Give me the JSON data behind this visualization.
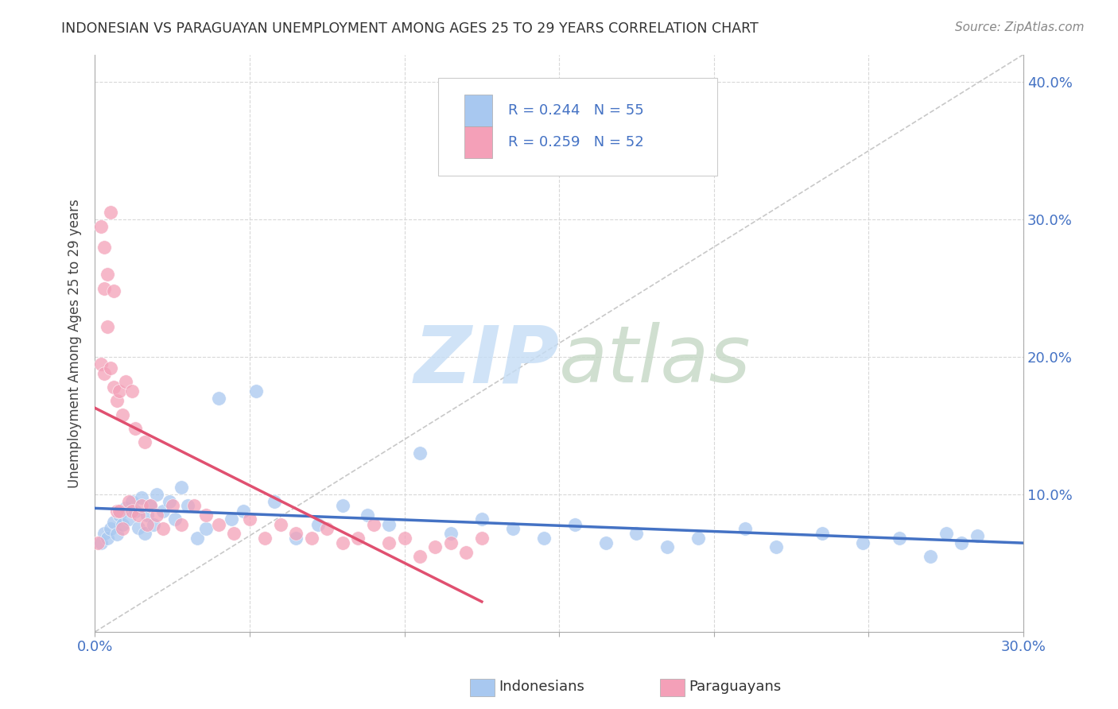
{
  "title": "INDONESIAN VS PARAGUAYAN UNEMPLOYMENT AMONG AGES 25 TO 29 YEARS CORRELATION CHART",
  "source": "Source: ZipAtlas.com",
  "ylabel": "Unemployment Among Ages 25 to 29 years",
  "xlim": [
    0.0,
    0.3
  ],
  "ylim": [
    0.0,
    0.42
  ],
  "indonesian_color": "#a8c8f0",
  "paraguayan_color": "#f4a0b8",
  "trend_line_color_indo": "#4472c4",
  "trend_line_color_para": "#e05070",
  "diagonal_color": "#c8c8c8",
  "grid_color": "#d8d8d8",
  "legend_R_indo": "R = 0.244",
  "legend_N_indo": "N = 55",
  "legend_R_para": "R = 0.259",
  "legend_N_para": "N = 52",
  "legend_label_indo": "Indonesians",
  "legend_label_para": "Paraguayans",
  "indonesian_x": [
    0.002,
    0.003,
    0.004,
    0.005,
    0.006,
    0.007,
    0.008,
    0.009,
    0.01,
    0.011,
    0.012,
    0.013,
    0.014,
    0.015,
    0.016,
    0.017,
    0.018,
    0.019,
    0.02,
    0.022,
    0.024,
    0.026,
    0.028,
    0.03,
    0.033,
    0.036,
    0.04,
    0.044,
    0.048,
    0.052,
    0.058,
    0.065,
    0.072,
    0.08,
    0.088,
    0.095,
    0.105,
    0.115,
    0.125,
    0.135,
    0.145,
    0.155,
    0.165,
    0.175,
    0.185,
    0.195,
    0.21,
    0.22,
    0.235,
    0.248,
    0.26,
    0.27,
    0.275,
    0.28,
    0.285
  ],
  "indonesian_y": [
    0.065,
    0.072,
    0.068,
    0.075,
    0.08,
    0.071,
    0.085,
    0.078,
    0.09,
    0.082,
    0.095,
    0.088,
    0.076,
    0.098,
    0.072,
    0.085,
    0.092,
    0.078,
    0.1,
    0.088,
    0.095,
    0.082,
    0.105,
    0.092,
    0.068,
    0.075,
    0.17,
    0.082,
    0.088,
    0.175,
    0.095,
    0.068,
    0.078,
    0.092,
    0.085,
    0.078,
    0.13,
    0.072,
    0.082,
    0.075,
    0.068,
    0.078,
    0.065,
    0.072,
    0.062,
    0.068,
    0.075,
    0.062,
    0.072,
    0.065,
    0.068,
    0.055,
    0.072,
    0.065,
    0.07
  ],
  "paraguayan_x": [
    0.001,
    0.002,
    0.002,
    0.003,
    0.003,
    0.003,
    0.004,
    0.004,
    0.005,
    0.005,
    0.006,
    0.006,
    0.007,
    0.007,
    0.008,
    0.008,
    0.009,
    0.009,
    0.01,
    0.011,
    0.012,
    0.012,
    0.013,
    0.014,
    0.015,
    0.016,
    0.017,
    0.018,
    0.02,
    0.022,
    0.025,
    0.028,
    0.032,
    0.036,
    0.04,
    0.045,
    0.05,
    0.055,
    0.06,
    0.065,
    0.07,
    0.075,
    0.08,
    0.085,
    0.09,
    0.095,
    0.1,
    0.105,
    0.11,
    0.115,
    0.12,
    0.125
  ],
  "paraguayan_y": [
    0.065,
    0.295,
    0.195,
    0.28,
    0.25,
    0.188,
    0.26,
    0.222,
    0.305,
    0.192,
    0.248,
    0.178,
    0.168,
    0.088,
    0.175,
    0.088,
    0.158,
    0.075,
    0.182,
    0.095,
    0.175,
    0.088,
    0.148,
    0.085,
    0.092,
    0.138,
    0.078,
    0.092,
    0.085,
    0.075,
    0.092,
    0.078,
    0.092,
    0.085,
    0.078,
    0.072,
    0.082,
    0.068,
    0.078,
    0.072,
    0.068,
    0.075,
    0.065,
    0.068,
    0.078,
    0.065,
    0.068,
    0.055,
    0.062,
    0.065,
    0.058,
    0.068
  ],
  "para_trend_x_start": 0.0,
  "para_trend_x_end": 0.125,
  "indo_trend_x_start": 0.0,
  "indo_trend_x_end": 0.3
}
